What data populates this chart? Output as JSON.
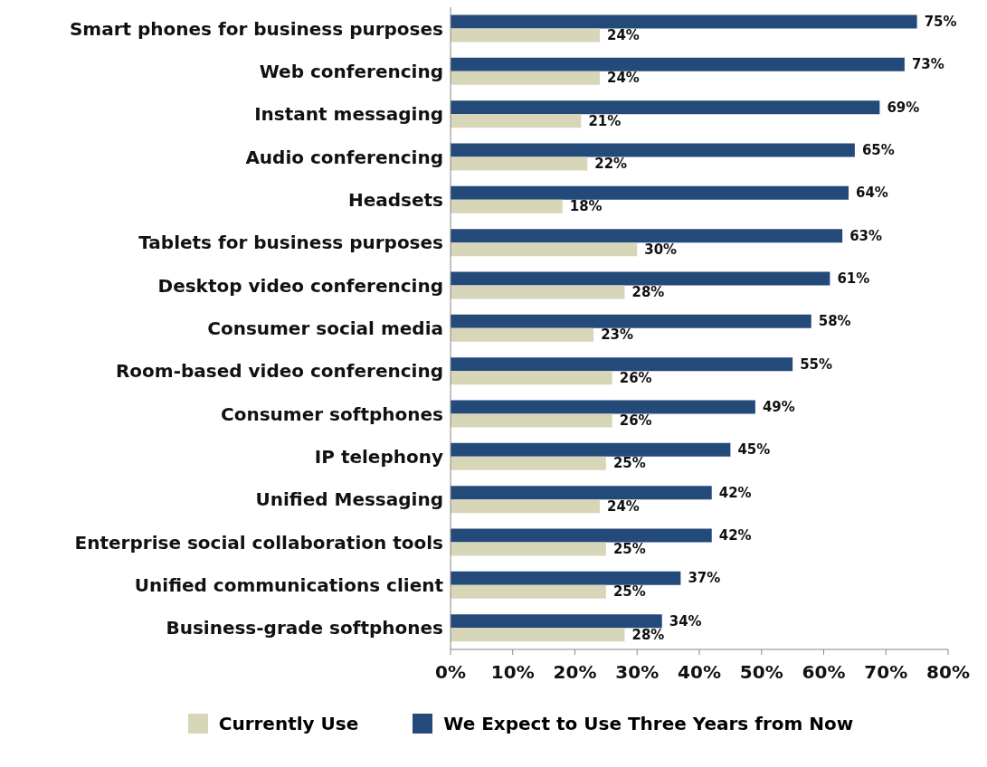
{
  "chart_data": {
    "type": "bar",
    "orientation": "horizontal",
    "categories": [
      "Smart phones for business purposes",
      "Web conferencing",
      "Instant messaging",
      "Audio conferencing",
      "Headsets",
      "Tablets for business purposes",
      "Desktop video conferencing",
      "Consumer social media",
      "Room-based video conferencing",
      "Consumer softphones",
      "IP telephony",
      "Unified Messaging",
      "Enterprise social collaboration tools",
      "Unified communications client",
      "Business-grade softphones"
    ],
    "series": [
      {
        "name": "Currently Use",
        "color": "#d8d6b8",
        "values": [
          24,
          24,
          21,
          22,
          18,
          30,
          28,
          23,
          26,
          26,
          25,
          24,
          25,
          25,
          28
        ],
        "value_labels": [
          "24%",
          "24%",
          "21%",
          "22%",
          "18%",
          "30%",
          "28%",
          "23%",
          "26%",
          "26%",
          "25%",
          "24%",
          "25%",
          "25%",
          "28%"
        ]
      },
      {
        "name": "We Expect to Use Three Years from Now",
        "color": "#234a78",
        "values": [
          75,
          73,
          69,
          65,
          64,
          63,
          61,
          58,
          55,
          49,
          45,
          42,
          42,
          37,
          34
        ],
        "value_labels": [
          "75%",
          "73%",
          "69%",
          "65%",
          "64%",
          "63%",
          "61%",
          "58%",
          "55%",
          "49%",
          "45%",
          "42%",
          "42%",
          "37%",
          "34%"
        ]
      }
    ],
    "xlim": [
      0,
      80
    ],
    "xticks": [
      {
        "value": 0,
        "label": "0%"
      },
      {
        "value": 10,
        "label": "10%"
      },
      {
        "value": 20,
        "label": "20%"
      },
      {
        "value": 30,
        "label": "30%"
      },
      {
        "value": 40,
        "label": "40%"
      },
      {
        "value": 50,
        "label": "50%"
      },
      {
        "value": 60,
        "label": "60%"
      },
      {
        "value": 70,
        "label": "70%"
      },
      {
        "value": 80,
        "label": "80%"
      }
    ],
    "grid": false,
    "legend": "bottom"
  }
}
